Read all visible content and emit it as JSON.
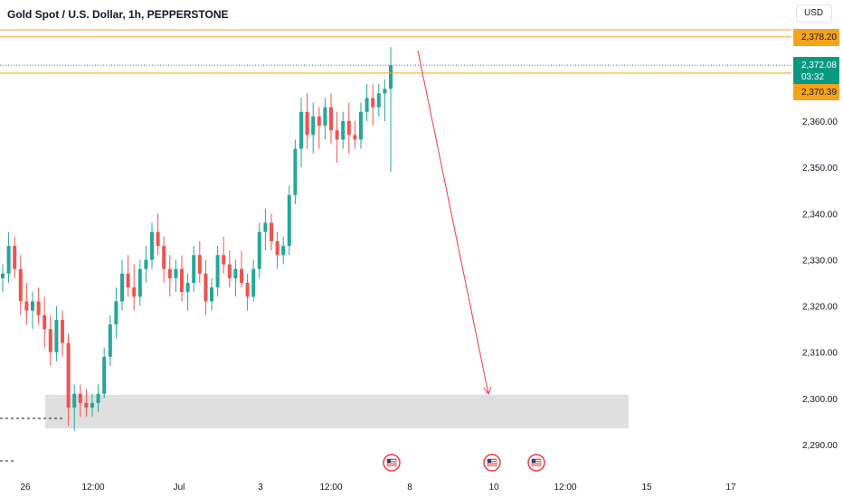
{
  "header": {
    "title": "Gold Spot / U.S. Dollar, 1h, PEPPERSTONE",
    "currency": "USD"
  },
  "price_tags": {
    "upper_level": "2,378.20",
    "current_price": "2,372.08",
    "countdown": "03:32",
    "lower_level": "2,370.39"
  },
  "colors": {
    "up": "#26a69a",
    "down": "#ef5350",
    "level_line": "#f7a21b",
    "level_tag": "#f7a21b",
    "current_tag": "#089981",
    "zone": "#d9d9d9",
    "arrow": "#f23645",
    "axis_text": "#131722"
  },
  "events": [
    {
      "icon": "us-flag-icon",
      "x": "7"
    },
    {
      "icon": "us-flag-icon",
      "x": "10"
    },
    {
      "icon": "us-flag-icon",
      "x": "11"
    }
  ],
  "chart_data": {
    "type": "candlestick",
    "title": "Gold Spot / U.S. Dollar, 1h, PEPPERSTONE",
    "y_axis": {
      "position": "right",
      "ticks": [
        "2,290.00",
        "2,300.00",
        "2,310.00",
        "2,320.00",
        "2,330.00",
        "2,340.00",
        "2,350.00",
        "2,360.00"
      ],
      "range": [
        2287,
        2382
      ]
    },
    "x_axis": {
      "ticks": [
        "26",
        "12:00",
        "Jul",
        "3",
        "12:00",
        "8",
        "10",
        "12:00",
        "15",
        "17"
      ]
    },
    "horizontal_levels": [
      2378.2,
      2370.39
    ],
    "current_price": 2372.08,
    "demand_zone": {
      "low": 2293.5,
      "high": 2300.8
    },
    "projection_arrow": {
      "from_price": 2376.5,
      "to_price": 2301
    },
    "series": [
      {
        "values": [
          [
            2326,
            2329,
            2323,
            2327
          ],
          [
            2327,
            2336,
            2325,
            2333
          ],
          [
            2333,
            2335,
            2326,
            2328
          ],
          [
            2328,
            2331,
            2318,
            2321
          ],
          [
            2321,
            2325,
            2316,
            2319
          ],
          [
            2319,
            2323,
            2315,
            2321
          ],
          [
            2321,
            2324,
            2316,
            2318
          ],
          [
            2318,
            2322,
            2311,
            2315
          ],
          [
            2315,
            2318,
            2307,
            2310
          ],
          [
            2310,
            2320,
            2308,
            2317
          ],
          [
            2317,
            2319,
            2309,
            2312
          ],
          [
            2312,
            2314,
            2294,
            2298
          ],
          [
            2298,
            2303,
            2293,
            2301
          ],
          [
            2301,
            2303,
            2296,
            2299
          ],
          [
            2299,
            2302,
            2296,
            2298
          ],
          [
            2298,
            2301,
            2296,
            2299
          ],
          [
            2299,
            2303,
            2297,
            2301
          ],
          [
            2301,
            2311,
            2300,
            2309
          ],
          [
            2309,
            2318,
            2307,
            2316
          ],
          [
            2316,
            2324,
            2313,
            2321
          ],
          [
            2321,
            2330,
            2319,
            2327
          ],
          [
            2327,
            2331,
            2322,
            2324
          ],
          [
            2324,
            2329,
            2319,
            2322
          ],
          [
            2322,
            2330,
            2320,
            2328
          ],
          [
            2328,
            2333,
            2325,
            2330
          ],
          [
            2330,
            2338,
            2328,
            2336
          ],
          [
            2336,
            2340,
            2331,
            2333
          ],
          [
            2333,
            2335,
            2325,
            2328
          ],
          [
            2328,
            2331,
            2322,
            2326
          ],
          [
            2326,
            2330,
            2323,
            2328
          ],
          [
            2328,
            2331,
            2321,
            2323
          ],
          [
            2323,
            2327,
            2319,
            2325
          ],
          [
            2325,
            2333,
            2323,
            2331
          ],
          [
            2331,
            2334,
            2325,
            2327
          ],
          [
            2327,
            2330,
            2318,
            2321
          ],
          [
            2321,
            2326,
            2319,
            2324
          ],
          [
            2324,
            2333,
            2322,
            2331
          ],
          [
            2331,
            2335,
            2327,
            2329
          ],
          [
            2329,
            2332,
            2324,
            2326
          ],
          [
            2326,
            2330,
            2322,
            2328
          ],
          [
            2328,
            2332,
            2324,
            2325
          ],
          [
            2325,
            2327,
            2319,
            2322
          ],
          [
            2322,
            2330,
            2321,
            2328
          ],
          [
            2328,
            2338,
            2326,
            2336
          ],
          [
            2336,
            2341,
            2332,
            2338
          ],
          [
            2338,
            2340,
            2332,
            2334
          ],
          [
            2334,
            2336,
            2328,
            2331
          ],
          [
            2331,
            2335,
            2329,
            2333
          ],
          [
            2333,
            2346,
            2331,
            2344
          ],
          [
            2344,
            2356,
            2342,
            2354
          ],
          [
            2354,
            2365,
            2350,
            2362
          ],
          [
            2362,
            2366,
            2354,
            2357
          ],
          [
            2357,
            2364,
            2353,
            2361
          ],
          [
            2361,
            2363,
            2354,
            2359
          ],
          [
            2359,
            2365,
            2356,
            2363
          ],
          [
            2363,
            2366,
            2355,
            2358
          ],
          [
            2358,
            2362,
            2351,
            2356
          ],
          [
            2356,
            2362,
            2354,
            2360
          ],
          [
            2360,
            2364,
            2353,
            2357
          ],
          [
            2357,
            2360,
            2354,
            2356
          ],
          [
            2356,
            2364,
            2354,
            2362
          ],
          [
            2362,
            2368,
            2360,
            2365
          ],
          [
            2365,
            2368,
            2359,
            2363
          ],
          [
            2363,
            2368,
            2361,
            2366
          ],
          [
            2366,
            2369,
            2360,
            2367
          ],
          [
            2367,
            2376,
            2349,
            2372.08
          ]
        ],
        "fields": [
          "open",
          "high",
          "low",
          "close"
        ]
      }
    ]
  }
}
